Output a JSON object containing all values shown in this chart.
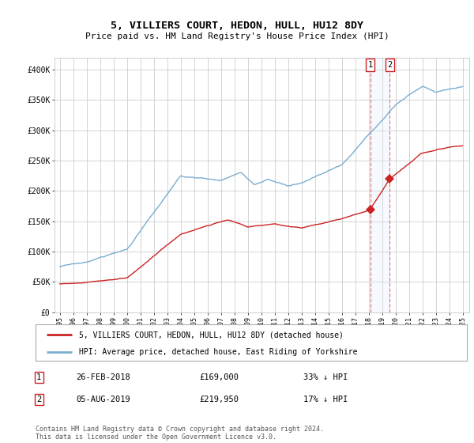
{
  "title": "5, VILLIERS COURT, HEDON, HULL, HU12 8DY",
  "subtitle": "Price paid vs. HM Land Registry's House Price Index (HPI)",
  "ylim": [
    0,
    420000
  ],
  "yticks": [
    0,
    50000,
    100000,
    150000,
    200000,
    250000,
    300000,
    350000,
    400000
  ],
  "ytick_labels": [
    "£0",
    "£50K",
    "£100K",
    "£150K",
    "£200K",
    "£250K",
    "£300K",
    "£350K",
    "£400K"
  ],
  "hpi_color": "#7aadcf",
  "price_color": "#cc2222",
  "transaction_1": {
    "date": "26-FEB-2018",
    "price": 169000,
    "price_str": "£169,000",
    "pct": "33%",
    "label": "1",
    "year": 2018.12
  },
  "transaction_2": {
    "date": "05-AUG-2019",
    "price": 219950,
    "price_str": "£219,950",
    "pct": "17%",
    "label": "2",
    "year": 2019.58
  },
  "legend_property": "5, VILLIERS COURT, HEDON, HULL, HU12 8DY (detached house)",
  "legend_hpi": "HPI: Average price, detached house, East Riding of Yorkshire",
  "footnote": "Contains HM Land Registry data © Crown copyright and database right 2024.\nThis data is licensed under the Open Government Licence v3.0.",
  "bg_color": "#ffffff",
  "grid_color": "#cccccc",
  "vline_color": "#e08080",
  "span_color": "#ddeeff"
}
